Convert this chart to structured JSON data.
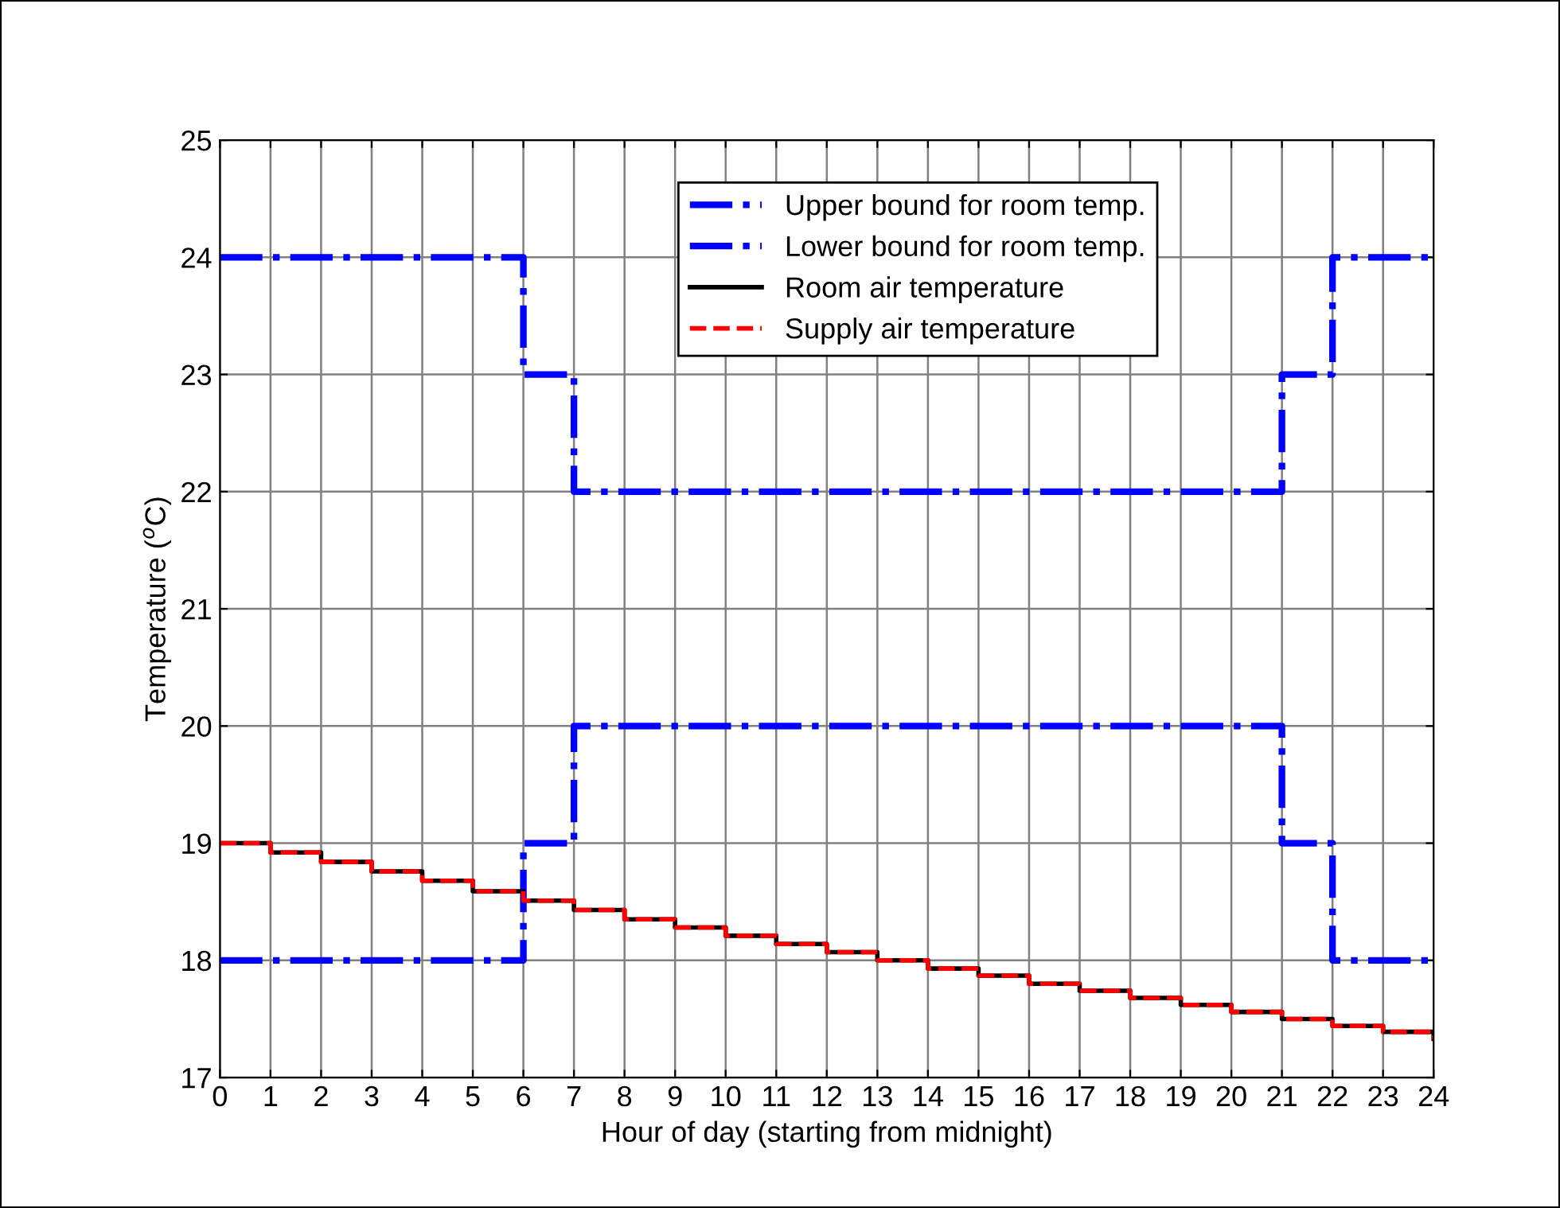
{
  "chart_data": {
    "type": "step",
    "xlabel": "Hour of day (starting from midnight)",
    "ylabel": "Temperature ($^{o}$C)",
    "x": [
      0,
      1,
      2,
      3,
      4,
      5,
      6,
      7,
      8,
      9,
      10,
      11,
      12,
      13,
      14,
      15,
      16,
      17,
      18,
      19,
      20,
      21,
      22,
      23,
      24
    ],
    "series": [
      {
        "name": "Upper bound for room temp.",
        "color": "#0000ff",
        "line_style": "dashdot",
        "values": [
          24,
          24,
          24,
          24,
          24,
          24,
          23,
          22,
          22,
          22,
          22,
          22,
          22,
          22,
          22,
          22,
          22,
          22,
          22,
          22,
          22,
          23,
          24,
          24,
          24
        ]
      },
      {
        "name": "Lower bound for room temp.",
        "color": "#0000ff",
        "line_style": "dashdot",
        "values": [
          18,
          18,
          18,
          18,
          18,
          18,
          19,
          20,
          20,
          20,
          20,
          20,
          20,
          20,
          20,
          20,
          20,
          20,
          20,
          20,
          20,
          19,
          18,
          18,
          18
        ]
      },
      {
        "name": "Room air temperature",
        "color": "#000000",
        "line_style": "solid",
        "values": [
          19.0,
          18.92,
          18.84,
          18.76,
          18.68,
          18.59,
          18.51,
          18.43,
          18.35,
          18.28,
          18.21,
          18.14,
          18.07,
          18.0,
          17.93,
          17.87,
          17.8,
          17.74,
          17.68,
          17.62,
          17.56,
          17.5,
          17.44,
          17.39,
          17.33
        ]
      },
      {
        "name": "Supply air temperature",
        "color": "#ff0000",
        "line_style": "dashed",
        "values": [
          19.0,
          18.92,
          18.84,
          18.76,
          18.68,
          18.59,
          18.51,
          18.43,
          18.35,
          18.28,
          18.21,
          18.14,
          18.07,
          18.0,
          17.93,
          17.87,
          17.8,
          17.74,
          17.68,
          17.62,
          17.56,
          17.5,
          17.44,
          17.39,
          17.33
        ]
      }
    ],
    "xlim": [
      0,
      24
    ],
    "xticks": [
      0,
      1,
      2,
      3,
      4,
      5,
      6,
      7,
      8,
      9,
      10,
      11,
      12,
      13,
      14,
      15,
      16,
      17,
      18,
      19,
      20,
      21,
      22,
      23,
      24
    ],
    "ylim": [
      17,
      25
    ],
    "yticks": [
      17,
      18,
      19,
      20,
      21,
      22,
      23,
      24,
      25
    ],
    "grid": true,
    "legend": "top",
    "marker": "none"
  }
}
